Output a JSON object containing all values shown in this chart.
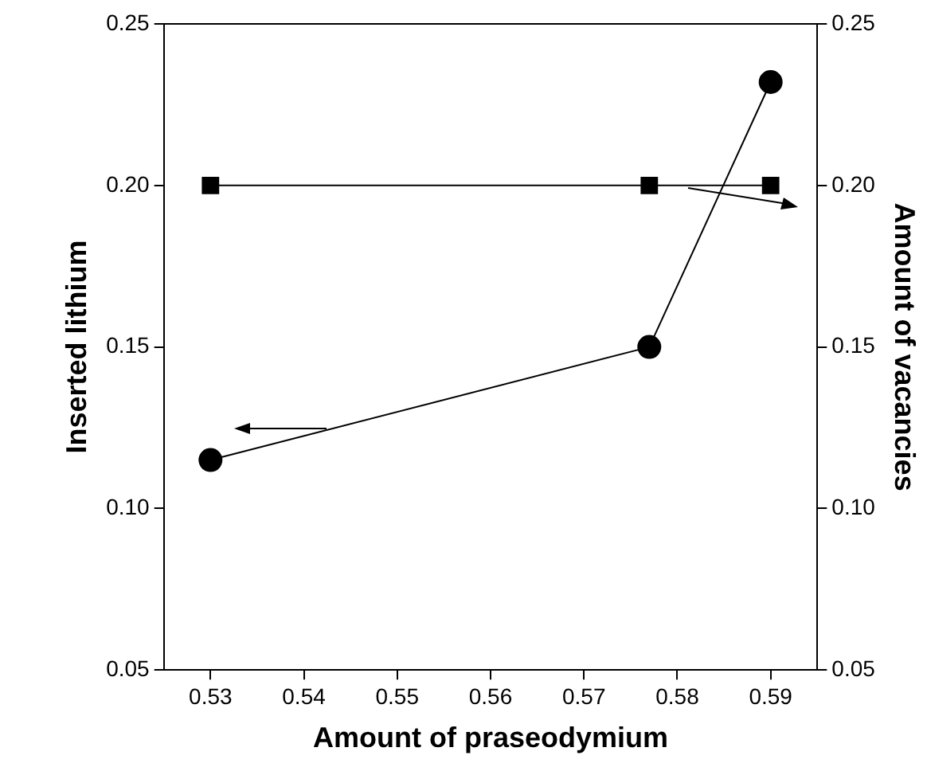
{
  "chart_data": {
    "type": "line",
    "xlabel": "Amount of praseodymium",
    "ylabel": "Inserted lithium",
    "y2label": "Amount of vacancies",
    "xlim": [
      0.525,
      0.595
    ],
    "xticks": [
      {
        "value": 0.53,
        "label": "0.53"
      },
      {
        "value": 0.54,
        "label": "0.54"
      },
      {
        "value": 0.55,
        "label": "0.55"
      },
      {
        "value": 0.56,
        "label": "0.56"
      },
      {
        "value": 0.57,
        "label": "0.57"
      },
      {
        "value": 0.58,
        "label": "0.58"
      },
      {
        "value": 0.59,
        "label": "0.59"
      }
    ],
    "ylim": [
      0.05,
      0.25
    ],
    "yticks": [
      {
        "value": 0.05,
        "label": "0.05"
      },
      {
        "value": 0.1,
        "label": "0.10"
      },
      {
        "value": 0.15,
        "label": "0.15"
      },
      {
        "value": 0.2,
        "label": "0.20"
      },
      {
        "value": 0.25,
        "label": "0.25"
      }
    ],
    "y2lim": [
      0.05,
      0.25
    ],
    "y2ticks": [
      {
        "value": 0.05,
        "label": "0.05"
      },
      {
        "value": 0.1,
        "label": "0.10"
      },
      {
        "value": 0.15,
        "label": "0.15"
      },
      {
        "value": 0.2,
        "label": "0.20"
      },
      {
        "value": 0.25,
        "label": "0.25"
      }
    ],
    "x": [
      0.53,
      0.577,
      0.59
    ],
    "series": [
      {
        "color": "#000000",
        "marker": "circle",
        "values": [
          0.115,
          0.15,
          0.232
        ]
      },
      {
        "color": "#000000",
        "marker": "square",
        "axis": "y2",
        "values": [
          0.2,
          0.2,
          0.2
        ]
      }
    ],
    "grid": false,
    "legend": false,
    "line_style": "solid"
  }
}
